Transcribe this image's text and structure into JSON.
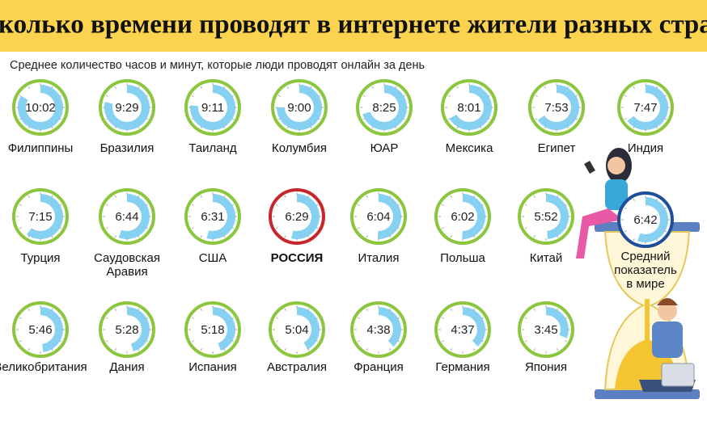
{
  "header": {
    "title": "Сколько времени проводят в интернете жители разных стран"
  },
  "subtitle": "Среднее количество часов и минут, которые люди проводят онлайн за день",
  "ring_color": "#8cc63f",
  "fill_color": "#86d0f2",
  "clocks": [
    {
      "country": "Филиппины",
      "time": "10:02"
    },
    {
      "country": "Бразилия",
      "time": "9:29"
    },
    {
      "country": "Таиланд",
      "time": "9:11"
    },
    {
      "country": "Колумбия",
      "time": "9:00"
    },
    {
      "country": "ЮАР",
      "time": "8:25"
    },
    {
      "country": "Мексика",
      "time": "8:01"
    },
    {
      "country": "Египет",
      "time": "7:53"
    },
    {
      "country": "Индия",
      "time": "7:47"
    },
    {
      "country": "Турция",
      "time": "7:15"
    },
    {
      "country": [
        "Саудовская",
        "Аравия"
      ],
      "time": "6:44"
    },
    {
      "country": "США",
      "time": "6:31"
    },
    {
      "country": "РОССИЯ",
      "time": "6:29",
      "ring_color": "#c8262d"
    },
    {
      "country": "Италия",
      "time": "6:04"
    },
    {
      "country": "Польша",
      "time": "6:02"
    },
    {
      "country": "Китай",
      "time": "5:52"
    },
    {
      "country": "Великобритания",
      "time": "5:46"
    },
    {
      "country": "Дания",
      "time": "5:28"
    },
    {
      "country": "Испания",
      "time": "5:18"
    },
    {
      "country": "Австралия",
      "time": "5:04"
    },
    {
      "country": "Франция",
      "time": "4:38"
    },
    {
      "country": "Германия",
      "time": "4:37"
    },
    {
      "country": "Япония",
      "time": "3:45"
    }
  ],
  "world": {
    "country": [
      "Средний",
      "показатель",
      "в мире"
    ],
    "time": "6:42",
    "ring_color": "#1f4e9c"
  }
}
